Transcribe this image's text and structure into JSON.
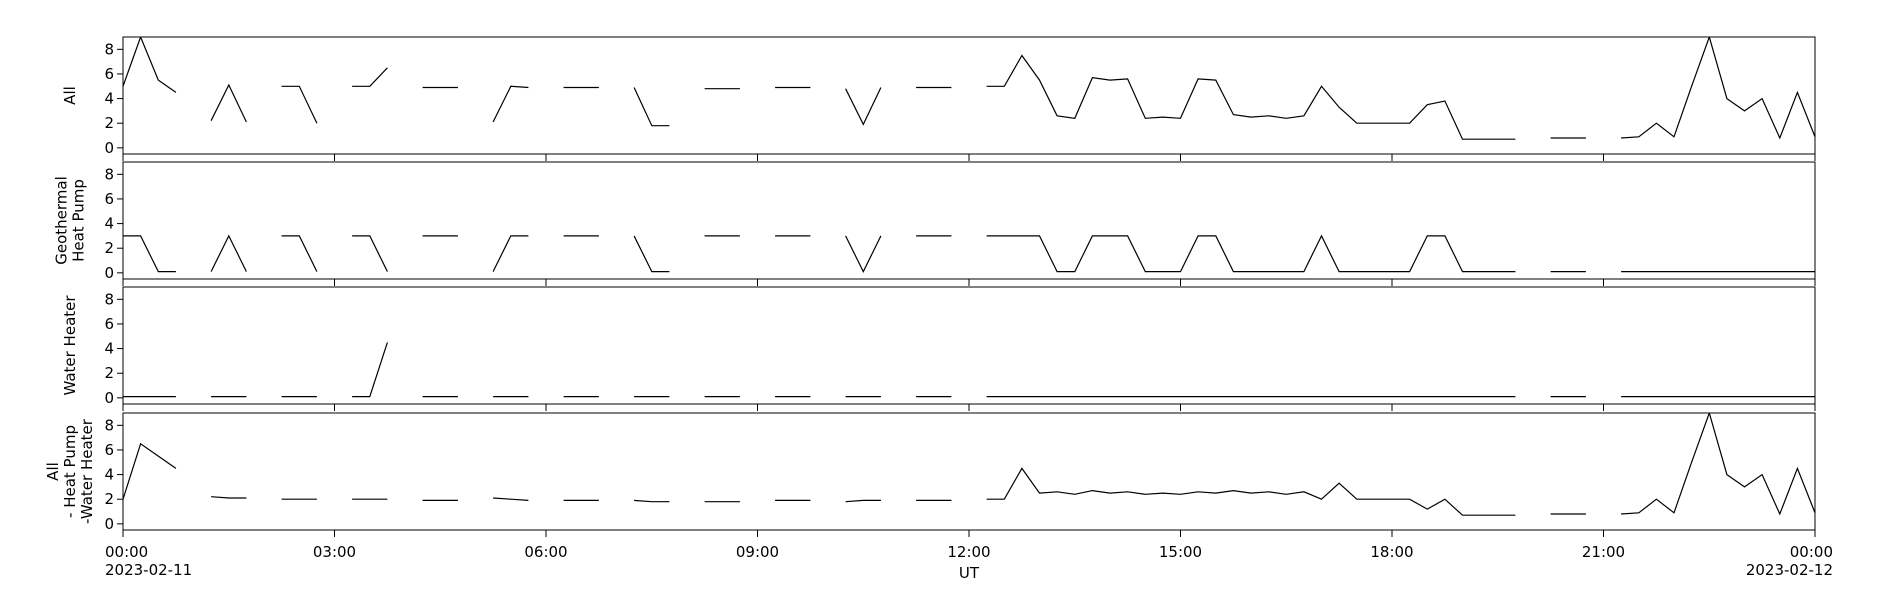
{
  "chart_data": {
    "type": "line",
    "x": [
      0,
      0.25,
      0.5,
      0.75,
      1,
      1.25,
      1.5,
      1.75,
      2,
      2.25,
      2.5,
      2.75,
      3,
      3.25,
      3.5,
      3.75,
      4,
      4.25,
      4.5,
      4.75,
      5,
      5.25,
      5.5,
      5.75,
      6,
      6.25,
      6.5,
      6.75,
      7,
      7.25,
      7.5,
      7.75,
      8,
      8.25,
      8.5,
      8.75,
      9,
      9.25,
      9.5,
      9.75,
      10,
      10.25,
      10.5,
      10.75,
      11,
      11.25,
      11.5,
      11.75,
      12,
      12.25,
      12.5,
      12.75,
      13,
      13.25,
      13.5,
      13.75,
      14,
      14.25,
      14.5,
      14.75,
      15,
      15.25,
      15.5,
      15.75,
      16,
      16.25,
      16.5,
      16.75,
      17,
      17.25,
      17.5,
      17.75,
      18,
      18.25,
      18.5,
      18.75,
      19,
      19.25,
      19.5,
      19.75,
      20,
      20.25,
      20.5,
      20.75,
      21,
      21.25,
      21.5,
      21.75,
      22,
      22.25,
      22.5,
      22.75,
      23,
      23.25,
      23.5,
      23.75,
      24
    ],
    "xlim": [
      0,
      24
    ],
    "xticks": [
      {
        "value": 0,
        "label": "00:00"
      },
      {
        "value": 3,
        "label": "03:00"
      },
      {
        "value": 6,
        "label": "06:00"
      },
      {
        "value": 9,
        "label": "09:00"
      },
      {
        "value": 12,
        "label": "12:00"
      },
      {
        "value": 15,
        "label": "15:00"
      },
      {
        "value": 18,
        "label": "18:00"
      },
      {
        "value": 21,
        "label": "21:00"
      },
      {
        "value": 24,
        "label": "00:00"
      }
    ],
    "xtick_dates": [
      {
        "value": 0,
        "label": "2023-02-11"
      },
      {
        "value": 24,
        "label": "2023-02-12"
      }
    ],
    "xlabel": "UT",
    "color": "#000000",
    "panels": [
      {
        "ylabel": [
          "All"
        ],
        "ylim": [
          -0.5,
          9
        ],
        "yticks": [
          0,
          2,
          4,
          6,
          8
        ],
        "values": [
          5,
          9,
          5.5,
          4.5,
          null,
          2.2,
          5.1,
          2.1,
          null,
          5.0,
          5.0,
          2.0,
          null,
          5.0,
          5.0,
          6.5,
          null,
          4.9,
          4.9,
          4.9,
          null,
          2.1,
          5.0,
          4.9,
          null,
          4.9,
          4.9,
          4.9,
          null,
          4.9,
          1.8,
          1.8,
          null,
          4.8,
          4.8,
          4.8,
          null,
          4.9,
          4.9,
          4.9,
          null,
          4.8,
          1.9,
          4.9,
          null,
          4.9,
          4.9,
          4.9,
          null,
          5.0,
          5.0,
          7.5,
          5.5,
          2.6,
          2.4,
          5.7,
          5.5,
          5.6,
          2.4,
          2.5,
          2.4,
          5.6,
          5.5,
          2.7,
          2.5,
          2.6,
          2.4,
          2.6,
          5.0,
          3.3,
          2.0,
          2.0,
          2.0,
          2.0,
          3.5,
          3.8,
          0.7,
          0.7,
          0.7,
          0.7,
          null,
          0.8,
          0.8,
          0.8,
          null,
          0.8,
          0.9,
          2.0,
          0.9,
          5.0,
          9,
          4.0,
          3.0,
          4.0,
          0.8,
          4.5,
          0.9
        ]
      },
      {
        "ylabel": [
          "Geothermal",
          "Heat Pump"
        ],
        "ylim": [
          -0.5,
          9
        ],
        "yticks": [
          0,
          2,
          4,
          6,
          8
        ],
        "values": [
          3,
          3,
          0.1,
          0.1,
          null,
          0.1,
          3,
          0.1,
          null,
          3,
          3,
          0.1,
          null,
          3,
          3,
          0.1,
          null,
          3,
          3,
          3,
          null,
          0.1,
          3,
          3,
          null,
          3,
          3,
          3,
          null,
          3,
          0.1,
          0.1,
          null,
          3,
          3,
          3,
          null,
          3,
          3,
          3,
          null,
          3,
          0.1,
          3,
          null,
          3,
          3,
          3,
          null,
          3,
          3,
          3,
          3,
          0.1,
          0.1,
          3,
          3,
          3,
          0.1,
          0.1,
          0.1,
          3,
          3,
          0.1,
          0.1,
          0.1,
          0.1,
          0.1,
          3,
          0.1,
          0.1,
          0.1,
          0.1,
          0.1,
          3,
          3,
          0.1,
          0.1,
          0.1,
          0.1,
          null,
          0.1,
          0.1,
          0.1,
          null,
          0.1,
          0.1,
          0.1,
          0.1,
          0.1,
          0.1,
          0.1,
          0.1,
          0.1,
          0.1,
          0.1,
          0.1
        ]
      },
      {
        "ylabel": [
          "Water Heater"
        ],
        "ylim": [
          -0.5,
          9
        ],
        "yticks": [
          0,
          2,
          4,
          6,
          8
        ],
        "values": [
          0.1,
          0.1,
          0.1,
          0.1,
          null,
          0.1,
          0.1,
          0.1,
          null,
          0.1,
          0.1,
          0.1,
          null,
          0.1,
          0.1,
          4.5,
          null,
          0.1,
          0.1,
          0.1,
          null,
          0.1,
          0.1,
          0.1,
          null,
          0.1,
          0.1,
          0.1,
          null,
          0.1,
          0.1,
          0.1,
          null,
          0.1,
          0.1,
          0.1,
          null,
          0.1,
          0.1,
          0.1,
          null,
          0.1,
          0.1,
          0.1,
          null,
          0.1,
          0.1,
          0.1,
          null,
          0.1,
          0.1,
          0.1,
          0.1,
          0.1,
          0.1,
          0.1,
          0.1,
          0.1,
          0.1,
          0.1,
          0.1,
          0.1,
          0.1,
          0.1,
          0.1,
          0.1,
          0.1,
          0.1,
          0.1,
          0.1,
          0.1,
          0.1,
          0.1,
          0.1,
          0.1,
          0.1,
          0.1,
          0.1,
          0.1,
          0.1,
          null,
          0.1,
          0.1,
          0.1,
          null,
          0.1,
          0.1,
          0.1,
          0.1,
          0.1,
          0.1,
          0.1,
          0.1,
          0.1,
          0.1,
          0.1,
          0.1
        ]
      },
      {
        "ylabel": [
          "All",
          "- Heat Pump",
          "-Water Heater"
        ],
        "ylim": [
          -0.5,
          9
        ],
        "yticks": [
          0,
          2,
          4,
          6,
          8
        ],
        "values": [
          2,
          6.5,
          5.5,
          4.5,
          null,
          2.2,
          2.1,
          2.1,
          null,
          2.0,
          2.0,
          2.0,
          null,
          2.0,
          2.0,
          2.0,
          null,
          1.9,
          1.9,
          1.9,
          null,
          2.1,
          2.0,
          1.9,
          null,
          1.9,
          1.9,
          1.9,
          null,
          1.9,
          1.8,
          1.8,
          null,
          1.8,
          1.8,
          1.8,
          null,
          1.9,
          1.9,
          1.9,
          null,
          1.8,
          1.9,
          1.9,
          null,
          1.9,
          1.9,
          1.9,
          null,
          2.0,
          2.0,
          4.5,
          2.5,
          2.6,
          2.4,
          2.7,
          2.5,
          2.6,
          2.4,
          2.5,
          2.4,
          2.6,
          2.5,
          2.7,
          2.5,
          2.6,
          2.4,
          2.6,
          2.0,
          3.3,
          2.0,
          2.0,
          2.0,
          2.0,
          1.2,
          2.0,
          0.7,
          0.7,
          0.7,
          0.7,
          null,
          0.8,
          0.8,
          0.8,
          null,
          0.8,
          0.9,
          2.0,
          0.9,
          5.0,
          9,
          4.0,
          3.0,
          4.0,
          0.8,
          4.5,
          0.9
        ]
      }
    ]
  }
}
